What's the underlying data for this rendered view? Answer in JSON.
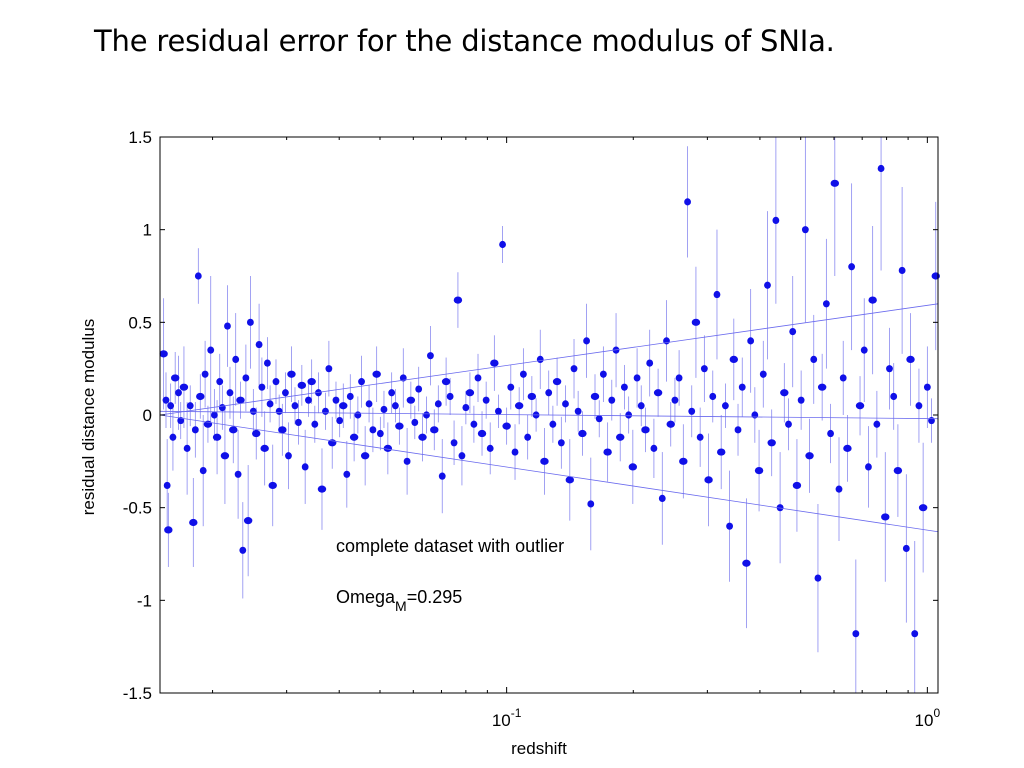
{
  "slide": {
    "title": "The residual error for the distance modulus of  SNIa."
  },
  "colors": {
    "points": "#1010e8",
    "error_bars": "#8a8af0",
    "fit_lines": "#6a6aee",
    "axes": "#000000"
  },
  "chart_data": {
    "type": "scatter",
    "title": "",
    "xlabel": "redshift",
    "ylabel": "residual distance modulus",
    "x_scale": "log",
    "xlim": [
      0.015,
      1.06
    ],
    "ylim": [
      -1.5,
      1.5
    ],
    "x_ticks": [
      {
        "value": 0.1,
        "base": "10",
        "exp": "-1"
      },
      {
        "value": 1.0,
        "base": "10",
        "exp": "0"
      }
    ],
    "y_ticks": [
      {
        "value": 1.5,
        "label": "1.5"
      },
      {
        "value": 1,
        "label": "1"
      },
      {
        "value": 0.5,
        "label": "0.5"
      },
      {
        "value": 0,
        "label": "0"
      },
      {
        "value": -0.5,
        "label": "-0.5"
      },
      {
        "value": -1,
        "label": "-1"
      },
      {
        "value": -1.5,
        "label": "-1.5"
      }
    ],
    "annotations": {
      "dataset": "complete dataset with outlier",
      "omega_base": "Omega",
      "omega_sub": "M",
      "omega_value": "=0.295"
    },
    "series": [
      {
        "marker": "filled-circle-with-error-bar",
        "points": [
          [
            0.0153,
            0.33,
            0.3
          ],
          [
            0.0155,
            0.08,
            0.15
          ],
          [
            0.0156,
            -0.38,
            0.25
          ],
          [
            0.0157,
            -0.62,
            0.2
          ],
          [
            0.0159,
            0.05,
            0.12
          ],
          [
            0.0161,
            -0.12,
            0.18
          ],
          [
            0.0163,
            0.2,
            0.14
          ],
          [
            0.0166,
            0.12,
            0.2
          ],
          [
            0.0168,
            -0.03,
            0.1
          ],
          [
            0.0171,
            0.15,
            0.22
          ],
          [
            0.0174,
            -0.18,
            0.25
          ],
          [
            0.0177,
            0.05,
            0.11
          ],
          [
            0.018,
            -0.58,
            0.24
          ],
          [
            0.0182,
            -0.08,
            0.15
          ],
          [
            0.0185,
            0.75,
            0.15
          ],
          [
            0.0187,
            0.1,
            0.12
          ],
          [
            0.019,
            -0.3,
            0.3
          ],
          [
            0.0192,
            0.22,
            0.18
          ],
          [
            0.0195,
            -0.05,
            0.1
          ],
          [
            0.0198,
            0.35,
            0.4
          ],
          [
            0.0202,
            0.0,
            0.14
          ],
          [
            0.0205,
            -0.12,
            0.2
          ],
          [
            0.0208,
            0.18,
            0.15
          ],
          [
            0.0211,
            0.04,
            0.12
          ],
          [
            0.0214,
            -0.22,
            0.26
          ],
          [
            0.0217,
            0.48,
            0.22
          ],
          [
            0.022,
            0.12,
            0.14
          ],
          [
            0.0224,
            -0.08,
            0.18
          ],
          [
            0.0227,
            0.3,
            0.25
          ],
          [
            0.023,
            -0.32,
            0.24
          ],
          [
            0.0233,
            0.08,
            0.1
          ],
          [
            0.0236,
            -0.73,
            0.26
          ],
          [
            0.024,
            0.2,
            0.18
          ],
          [
            0.0243,
            -0.57,
            0.3
          ],
          [
            0.0246,
            0.5,
            0.25
          ],
          [
            0.025,
            0.02,
            0.12
          ],
          [
            0.0254,
            -0.1,
            0.14
          ],
          [
            0.0258,
            0.38,
            0.22
          ],
          [
            0.0262,
            0.15,
            0.16
          ],
          [
            0.0266,
            -0.18,
            0.2
          ],
          [
            0.027,
            0.28,
            0.14
          ],
          [
            0.0274,
            0.06,
            0.1
          ],
          [
            0.0278,
            -0.38,
            0.22
          ],
          [
            0.0283,
            0.18,
            0.12
          ],
          [
            0.0288,
            0.02,
            0.09
          ],
          [
            0.0293,
            -0.08,
            0.14
          ],
          [
            0.0298,
            0.12,
            0.11
          ],
          [
            0.0303,
            -0.22,
            0.18
          ],
          [
            0.0308,
            0.22,
            0.15
          ],
          [
            0.0314,
            0.05,
            0.1
          ],
          [
            0.032,
            -0.04,
            0.12
          ],
          [
            0.0326,
            0.16,
            0.11
          ],
          [
            0.0332,
            -0.28,
            0.2
          ],
          [
            0.0338,
            0.08,
            0.09
          ],
          [
            0.0344,
            0.18,
            0.12
          ],
          [
            0.035,
            -0.05,
            0.1
          ],
          [
            0.0357,
            0.12,
            0.11
          ],
          [
            0.0364,
            -0.4,
            0.22
          ],
          [
            0.0371,
            0.02,
            0.1
          ],
          [
            0.0378,
            0.25,
            0.15
          ],
          [
            0.0385,
            -0.15,
            0.14
          ],
          [
            0.0393,
            0.08,
            0.1
          ],
          [
            0.0401,
            -0.03,
            0.09
          ],
          [
            0.0409,
            0.05,
            0.12
          ],
          [
            0.0417,
            -0.32,
            0.18
          ],
          [
            0.0425,
            0.1,
            0.12
          ],
          [
            0.0434,
            -0.12,
            0.13
          ],
          [
            0.0443,
            0.0,
            0.1
          ],
          [
            0.0452,
            0.18,
            0.14
          ],
          [
            0.0461,
            -0.22,
            0.16
          ],
          [
            0.0471,
            0.06,
            0.1
          ],
          [
            0.0481,
            -0.08,
            0.12
          ],
          [
            0.0491,
            0.22,
            0.15
          ],
          [
            0.0501,
            -0.1,
            0.09
          ],
          [
            0.0511,
            0.03,
            0.1
          ],
          [
            0.0522,
            -0.18,
            0.14
          ],
          [
            0.0533,
            0.12,
            0.11
          ],
          [
            0.0544,
            0.05,
            0.09
          ],
          [
            0.0556,
            -0.06,
            0.1
          ],
          [
            0.0568,
            0.2,
            0.16
          ],
          [
            0.058,
            -0.25,
            0.18
          ],
          [
            0.0592,
            0.08,
            0.1
          ],
          [
            0.0605,
            -0.04,
            0.09
          ],
          [
            0.0618,
            0.14,
            0.12
          ],
          [
            0.0631,
            -0.12,
            0.13
          ],
          [
            0.0645,
            0.0,
            0.1
          ],
          [
            0.0659,
            0.32,
            0.16
          ],
          [
            0.0673,
            -0.08,
            0.11
          ],
          [
            0.0688,
            0.06,
            0.1
          ],
          [
            0.0703,
            -0.33,
            0.2
          ],
          [
            0.0718,
            0.18,
            0.13
          ],
          [
            0.0734,
            0.1,
            0.1
          ],
          [
            0.075,
            -0.15,
            0.12
          ],
          [
            0.0766,
            0.62,
            0.15
          ],
          [
            0.0783,
            -0.22,
            0.16
          ],
          [
            0.08,
            0.04,
            0.09
          ],
          [
            0.0818,
            0.12,
            0.11
          ],
          [
            0.0836,
            -0.05,
            0.1
          ],
          [
            0.0855,
            0.2,
            0.13
          ],
          [
            0.0874,
            -0.1,
            0.12
          ],
          [
            0.0894,
            0.08,
            0.1
          ],
          [
            0.0914,
            -0.18,
            0.14
          ],
          [
            0.0935,
            0.28,
            0.15
          ],
          [
            0.0956,
            0.02,
            0.09
          ],
          [
            0.0978,
            0.92,
            0.1
          ],
          [
            0.1,
            -0.06,
            0.1
          ],
          [
            0.1023,
            0.15,
            0.12
          ],
          [
            0.1047,
            -0.2,
            0.15
          ],
          [
            0.1071,
            0.05,
            0.1
          ],
          [
            0.1096,
            0.22,
            0.14
          ],
          [
            0.1122,
            -0.12,
            0.12
          ],
          [
            0.1148,
            0.1,
            0.11
          ],
          [
            0.1175,
            0.0,
            0.09
          ],
          [
            0.1202,
            0.3,
            0.16
          ],
          [
            0.123,
            -0.25,
            0.18
          ],
          [
            0.1259,
            0.12,
            0.12
          ],
          [
            0.1288,
            -0.05,
            0.1
          ],
          [
            0.1318,
            0.18,
            0.13
          ],
          [
            0.1349,
            -0.15,
            0.14
          ],
          [
            0.138,
            0.06,
            0.1
          ],
          [
            0.1413,
            -0.35,
            0.22
          ],
          [
            0.1446,
            0.25,
            0.16
          ],
          [
            0.1479,
            0.02,
            0.11
          ],
          [
            0.1514,
            -0.1,
            0.12
          ],
          [
            0.1549,
            0.4,
            0.2
          ],
          [
            0.1585,
            -0.48,
            0.25
          ],
          [
            0.1622,
            0.1,
            0.12
          ],
          [
            0.166,
            -0.02,
            0.1
          ],
          [
            0.1698,
            0.22,
            0.15
          ],
          [
            0.1738,
            -0.2,
            0.16
          ],
          [
            0.1778,
            0.08,
            0.11
          ],
          [
            0.182,
            0.35,
            0.2
          ],
          [
            0.1862,
            -0.12,
            0.13
          ],
          [
            0.1905,
            0.15,
            0.12
          ],
          [
            0.195,
            0.0,
            0.1
          ],
          [
            0.1995,
            -0.28,
            0.2
          ],
          [
            0.2042,
            0.2,
            0.16
          ],
          [
            0.2089,
            0.05,
            0.11
          ],
          [
            0.2138,
            -0.08,
            0.12
          ],
          [
            0.2188,
            0.28,
            0.18
          ],
          [
            0.2239,
            -0.18,
            0.16
          ],
          [
            0.2291,
            0.12,
            0.13
          ],
          [
            0.2344,
            -0.45,
            0.25
          ],
          [
            0.2399,
            0.4,
            0.22
          ],
          [
            0.2455,
            -0.05,
            0.12
          ],
          [
            0.2512,
            0.08,
            0.12
          ],
          [
            0.257,
            0.2,
            0.15
          ],
          [
            0.263,
            -0.25,
            0.2
          ],
          [
            0.2692,
            1.15,
            0.3
          ],
          [
            0.2754,
            0.02,
            0.14
          ],
          [
            0.2818,
            0.5,
            0.3
          ],
          [
            0.2884,
            -0.12,
            0.16
          ],
          [
            0.2951,
            0.25,
            0.18
          ],
          [
            0.302,
            -0.35,
            0.25
          ],
          [
            0.309,
            0.1,
            0.14
          ],
          [
            0.3162,
            0.65,
            0.35
          ],
          [
            0.3236,
            -0.2,
            0.2
          ],
          [
            0.3311,
            0.05,
            0.12
          ],
          [
            0.3388,
            -0.6,
            0.3
          ],
          [
            0.3467,
            0.3,
            0.22
          ],
          [
            0.3548,
            -0.08,
            0.14
          ],
          [
            0.3631,
            0.15,
            0.16
          ],
          [
            0.3715,
            -0.8,
            0.35
          ],
          [
            0.3802,
            0.4,
            0.28
          ],
          [
            0.389,
            0.0,
            0.15
          ],
          [
            0.3981,
            -0.3,
            0.22
          ],
          [
            0.4074,
            0.22,
            0.18
          ],
          [
            0.4169,
            0.7,
            0.4
          ],
          [
            0.4266,
            -0.15,
            0.18
          ],
          [
            0.4365,
            1.05,
            0.45
          ],
          [
            0.4467,
            -0.5,
            0.3
          ],
          [
            0.4571,
            0.12,
            0.16
          ],
          [
            0.4677,
            -0.05,
            0.14
          ],
          [
            0.4786,
            0.45,
            0.3
          ],
          [
            0.4898,
            -0.38,
            0.25
          ],
          [
            0.5012,
            0.08,
            0.16
          ],
          [
            0.5129,
            1.0,
            0.5
          ],
          [
            0.5248,
            -0.22,
            0.2
          ],
          [
            0.537,
            0.3,
            0.24
          ],
          [
            0.5495,
            -0.88,
            0.4
          ],
          [
            0.5623,
            0.15,
            0.18
          ],
          [
            0.5754,
            0.6,
            0.35
          ],
          [
            0.5888,
            -0.1,
            0.16
          ],
          [
            0.6026,
            1.25,
            0.5
          ],
          [
            0.6166,
            -0.4,
            0.28
          ],
          [
            0.631,
            0.2,
            0.2
          ],
          [
            0.6457,
            -0.18,
            0.18
          ],
          [
            0.6607,
            0.8,
            0.45
          ],
          [
            0.6761,
            -1.18,
            0.4
          ],
          [
            0.6918,
            0.05,
            0.16
          ],
          [
            0.7079,
            0.35,
            0.28
          ],
          [
            0.7244,
            -0.28,
            0.22
          ],
          [
            0.7413,
            0.62,
            0.4
          ],
          [
            0.7586,
            -0.05,
            0.18
          ],
          [
            0.7762,
            1.33,
            0.55
          ],
          [
            0.7943,
            -0.55,
            0.35
          ],
          [
            0.8128,
            0.25,
            0.22
          ],
          [
            0.8318,
            0.1,
            0.18
          ],
          [
            0.8511,
            -0.3,
            0.25
          ],
          [
            0.871,
            0.78,
            0.45
          ],
          [
            0.8913,
            -0.72,
            0.4
          ],
          [
            0.912,
            0.3,
            0.25
          ],
          [
            0.9333,
            -1.18,
            0.5
          ],
          [
            0.955,
            0.05,
            0.2
          ],
          [
            0.9772,
            -0.5,
            0.35
          ],
          [
            1.0,
            0.15,
            0.22
          ],
          [
            1.023,
            -0.03,
            0.12
          ],
          [
            1.047,
            0.75,
            0.4
          ]
        ]
      }
    ],
    "fit_lines": [
      {
        "x": [
          0.015,
          1.06
        ],
        "y": [
          0.0,
          0.6
        ]
      },
      {
        "x": [
          0.015,
          1.06
        ],
        "y": [
          0.0,
          -0.63
        ]
      },
      {
        "x": [
          0.015,
          1.06
        ],
        "y": [
          0.02,
          -0.02
        ]
      }
    ]
  }
}
